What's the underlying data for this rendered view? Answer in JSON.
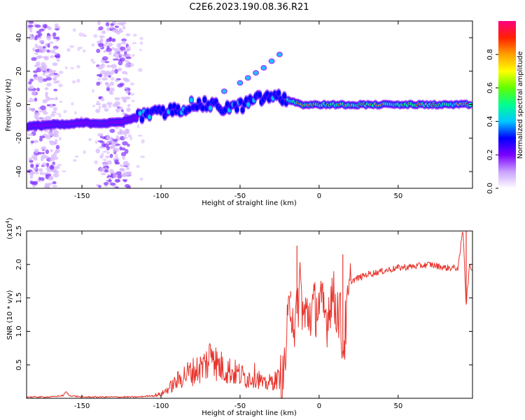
{
  "title": "C2E6.2023.190.08.36.R21",
  "chart_data": [
    {
      "type": "heatmap",
      "title": "C2E6.2023.190.08.36.R21",
      "xlabel": "Height of straight line (km)",
      "ylabel": "Frequency (Hz)",
      "xlim": [
        -185,
        97
      ],
      "ylim": [
        -50,
        50
      ],
      "x_ticks": [
        -150,
        -100,
        -50,
        0,
        50
      ],
      "x_tick_labels": [
        "-150",
        "-100",
        "-50",
        "0",
        "50"
      ],
      "y_ticks": [
        -40,
        -20,
        0,
        20,
        40
      ],
      "y_tick_labels": [
        "-40",
        "-20",
        "0",
        "20",
        "40"
      ],
      "colorbar": {
        "label": "Normalized spectral amplitude",
        "range": [
          0,
          1
        ],
        "ticks": [
          0.0,
          0.2,
          0.4,
          0.6,
          0.8
        ],
        "tick_labels": [
          "0.0",
          "0.2",
          "0.4",
          "0.6",
          "0.8"
        ],
        "colors": [
          "#ffffff",
          "#c9a0ff",
          "#7a00ff",
          "#0000ff",
          "#00c8ff",
          "#00ff90",
          "#60ff00",
          "#ffff00",
          "#ffa000",
          "#ff2000",
          "#ff0080"
        ]
      },
      "ridge": {
        "name": "main echo frequency track",
        "x": [
          -183,
          -170,
          -160,
          -150,
          -140,
          -130,
          -120,
          -110,
          -100,
          -90,
          -80,
          -70,
          -60,
          -50,
          -40,
          -30,
          -20,
          -10,
          0,
          10,
          20,
          30,
          40,
          50,
          60,
          70,
          80,
          90,
          97
        ],
        "y": [
          -13,
          -12,
          -12,
          -11,
          -11,
          -11,
          -9,
          -6,
          -5,
          -3,
          0,
          0,
          -2,
          -1,
          3,
          5,
          3,
          0,
          0,
          0,
          0,
          0,
          0,
          0,
          0,
          0,
          0,
          0,
          0
        ]
      },
      "upper_branch": {
        "name": "upper echo branch",
        "x": [
          -60,
          -50,
          -45,
          -40,
          -35,
          -30,
          -25
        ],
        "y": [
          8,
          13,
          16,
          19,
          22,
          26,
          30
        ]
      },
      "noise_bands_x": [
        [
          -183,
          -165
        ],
        [
          -140,
          -120
        ]
      ]
    },
    {
      "type": "line",
      "xlabel": "Height of straight line (km)",
      "ylabel": "SNR (10 * v/v)",
      "y_multiplier": "(x10",
      "y_multiplier_exp": "4",
      "y_multiplier_close": ")",
      "xlim": [
        -185,
        97
      ],
      "ylim": [
        0,
        2.5
      ],
      "x_ticks": [
        -150,
        -100,
        -50,
        0,
        50
      ],
      "x_tick_labels": [
        "-150",
        "-100",
        "-50",
        "0",
        "50"
      ],
      "y_ticks": [
        0.5,
        1.0,
        1.5,
        2.0,
        2.5
      ],
      "y_tick_labels": [
        "0.5",
        "1.0",
        "1.5",
        "2.0",
        "2.5"
      ],
      "series": [
        {
          "name": "SNR",
          "color": "#e8332c",
          "x": [
            -183,
            -170,
            -162,
            -160,
            -158,
            -150,
            -130,
            -115,
            -105,
            -100,
            -95,
            -90,
            -85,
            -80,
            -75,
            -70,
            -67,
            -65,
            -60,
            -55,
            -50,
            -45,
            -40,
            -35,
            -30,
            -25,
            -23,
            -20,
            -18,
            -15,
            -12,
            -10,
            -5,
            0,
            5,
            8,
            10,
            13,
            15,
            20,
            25,
            30,
            40,
            50,
            60,
            70,
            80,
            88,
            91,
            93,
            95,
            97
          ],
          "values": [
            0.02,
            0.02,
            0.04,
            0.1,
            0.04,
            0.02,
            0.02,
            0.02,
            0.04,
            0.06,
            0.15,
            0.25,
            0.35,
            0.4,
            0.45,
            0.55,
            0.82,
            0.5,
            0.45,
            0.4,
            0.35,
            0.3,
            0.35,
            0.2,
            0.25,
            0.3,
            0.2,
            1.0,
            1.5,
            1.0,
            1.8,
            1.2,
            1.3,
            1.4,
            1.2,
            1.6,
            1.4,
            1.3,
            0.7,
            1.75,
            1.8,
            1.85,
            1.9,
            1.95,
            1.97,
            2.0,
            1.95,
            1.95,
            2.55,
            1.4,
            1.95,
            1.95
          ],
          "spikes": [
            {
              "x": -18,
              "y": 1.6
            },
            {
              "x": -14,
              "y": 2.28
            },
            {
              "x": 15,
              "y": 2.15
            },
            {
              "x": 93,
              "y": 2.5
            }
          ]
        }
      ]
    }
  ]
}
